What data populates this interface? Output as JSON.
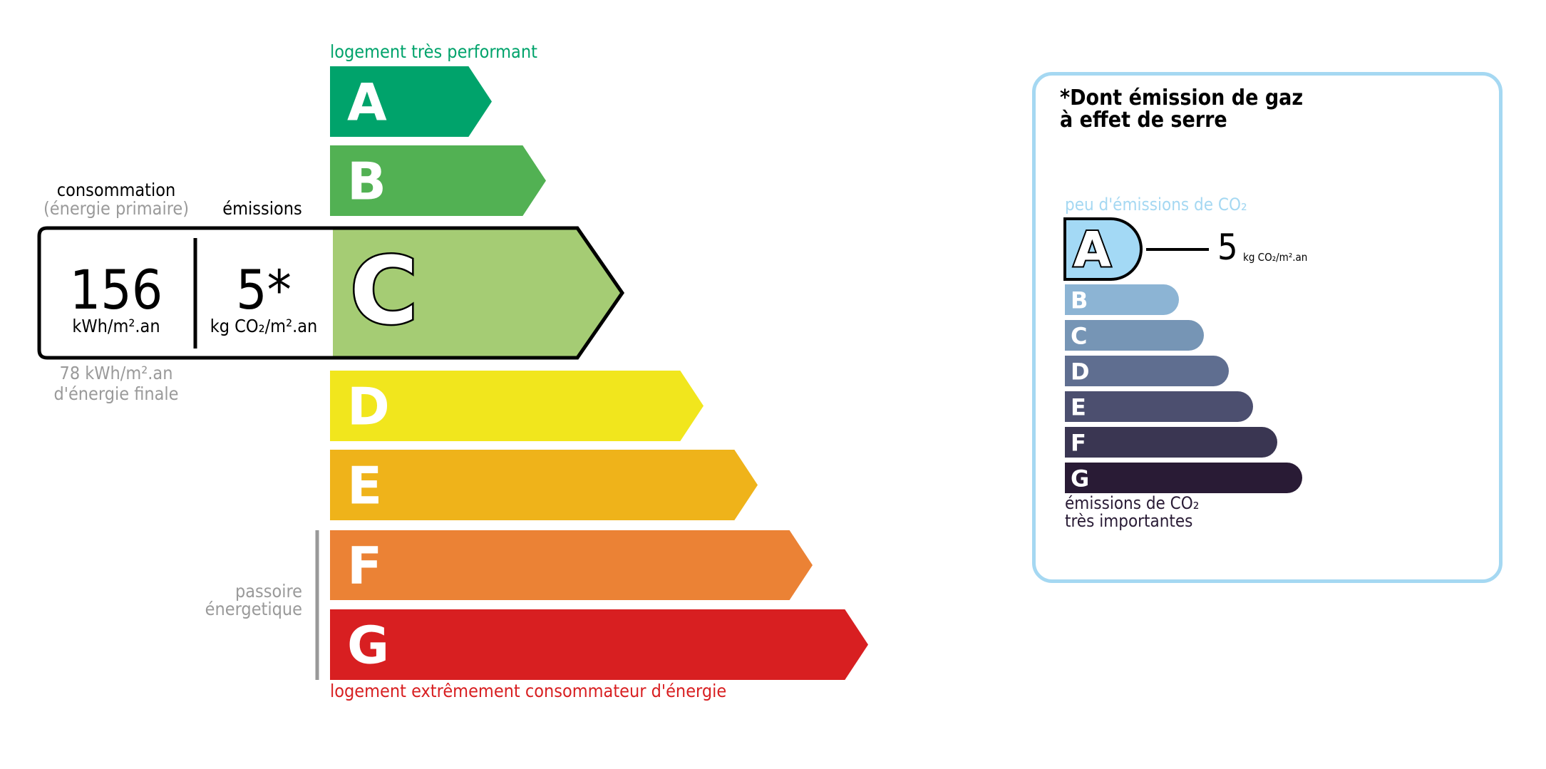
{
  "energy": {
    "top_label": "logement très performant",
    "bottom_label": "logement extrêmement consommateur d'énergie",
    "classes": [
      "A",
      "B",
      "C",
      "D",
      "E",
      "F",
      "G"
    ],
    "colors": [
      "#00a36b",
      "#52b153",
      "#a5cc74",
      "#f1e61d",
      "#efb31a",
      "#eb8235",
      "#d81f21"
    ],
    "current_class": "C",
    "consumption_label": "consommation",
    "consumption_sub": "(énergie primaire)",
    "emissions_label": "émissions",
    "consumption_value": "156",
    "consumption_unit": "kWh/m².an",
    "emissions_value": "5*",
    "emissions_unit": "kg CO₂/m².an",
    "final_energy_value": "78 kWh/m².an",
    "final_energy_label": "d'énergie finale",
    "passoire_line1": "passoire",
    "passoire_line2": "énergetique"
  },
  "ges": {
    "title_line1": "*Dont émission de gaz",
    "title_line2": "à effet de serre",
    "top_label": "peu d'émissions de CO₂",
    "bottom_line1": "émissions de CO₂",
    "bottom_line2": "très importantes",
    "classes": [
      "A",
      "B",
      "C",
      "D",
      "E",
      "F",
      "G"
    ],
    "colors": [
      "#a3d9f5",
      "#8cb4d4",
      "#7695b5",
      "#5f6e90",
      "#4c4f6f",
      "#3a3652",
      "#291b35"
    ],
    "current_class": "A",
    "value": "5",
    "unit": "kg CO₂/m².an"
  }
}
